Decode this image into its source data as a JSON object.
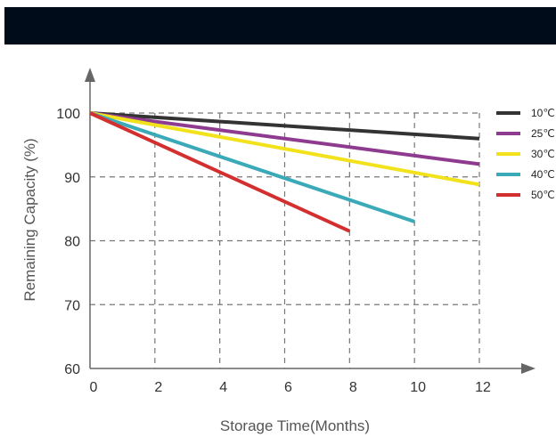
{
  "chart_data": {
    "type": "line",
    "xlabel": "Storage Time(Months)",
    "ylabel": "Remaining Capacity (%)",
    "x_ticks": [
      0,
      2,
      4,
      6,
      8,
      10,
      12
    ],
    "y_ticks": [
      60,
      70,
      80,
      90,
      100
    ],
    "xlim": [
      0,
      12
    ],
    "ylim": [
      60,
      100
    ],
    "grid": true,
    "legend_position": "right",
    "series": [
      {
        "name": "10℃",
        "color": "#333333",
        "x": [
          0,
          12
        ],
        "y": [
          100,
          96
        ]
      },
      {
        "name": "25℃",
        "color": "#8e3b8f",
        "x": [
          0,
          12
        ],
        "y": [
          100,
          92
        ]
      },
      {
        "name": "30℃",
        "color": "#f2e21c",
        "x": [
          0,
          12
        ],
        "y": [
          100,
          88.8
        ]
      },
      {
        "name": "40℃",
        "color": "#3aa9b8",
        "x": [
          0,
          10
        ],
        "y": [
          100,
          83
        ]
      },
      {
        "name": "50℃",
        "color": "#d32f2f",
        "x": [
          0,
          8
        ],
        "y": [
          100,
          81.5
        ]
      }
    ]
  }
}
